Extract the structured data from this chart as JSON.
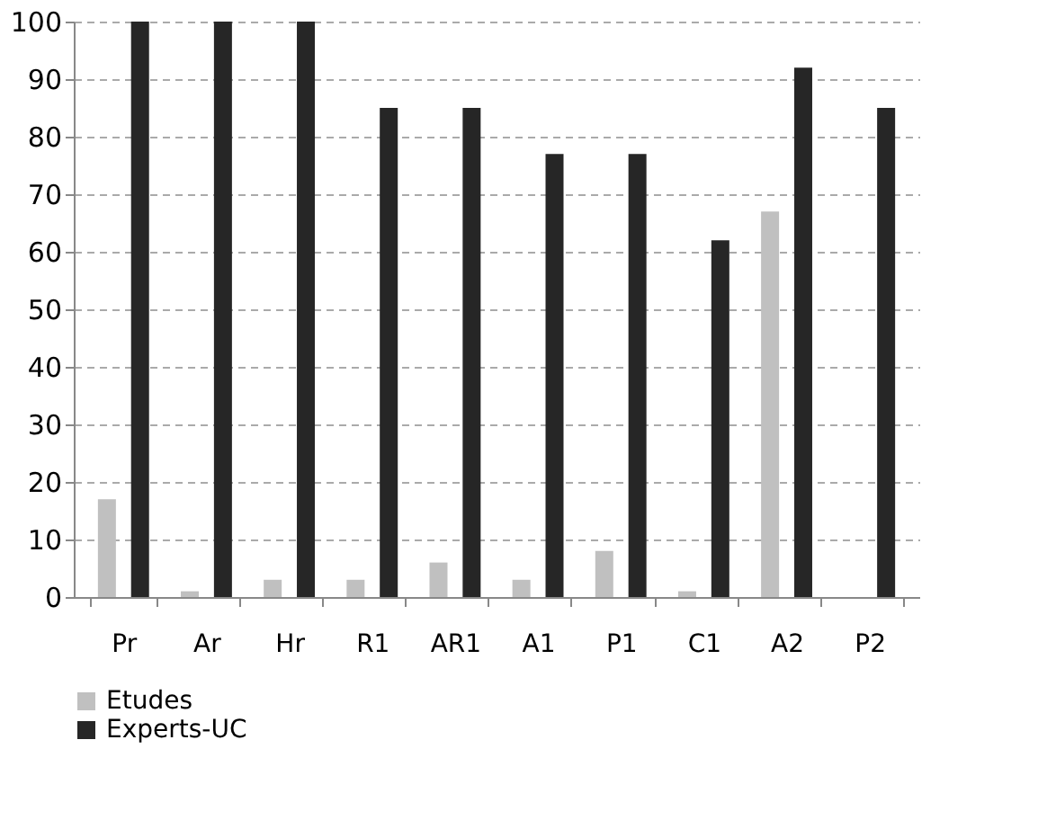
{
  "chart_data": {
    "type": "bar",
    "categories": [
      "Pr",
      "Ar",
      "Hr",
      "R1",
      "AR1",
      "A1",
      "P1",
      "C1",
      "A2",
      "P2"
    ],
    "series": [
      {
        "name": "Etudes",
        "color": "#c0c0c0",
        "values": [
          17,
          1,
          3,
          3,
          6,
          3,
          8,
          1,
          67,
          0
        ]
      },
      {
        "name": "Experts-UC",
        "color": "#262626",
        "values": [
          100,
          100,
          100,
          85,
          85,
          77,
          77,
          62,
          92,
          85
        ]
      }
    ],
    "ylim": [
      0,
      100
    ],
    "yticks": [
      0,
      10,
      20,
      30,
      40,
      50,
      60,
      70,
      80,
      90,
      100
    ],
    "grid": "y",
    "legend": "bottom left"
  }
}
